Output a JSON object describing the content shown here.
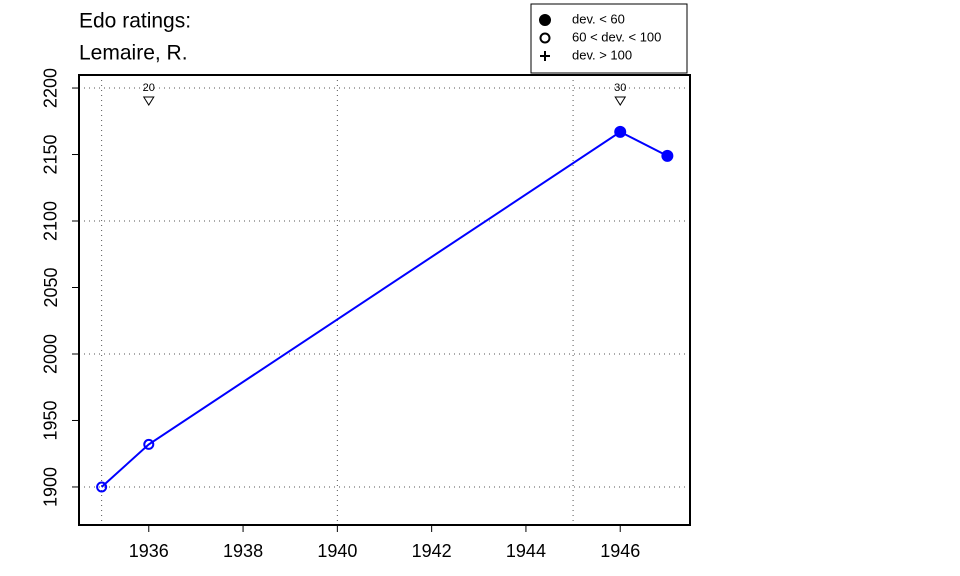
{
  "chart_data": {
    "type": "line",
    "title": "Edo ratings:",
    "subtitle": "Lemaire, R.",
    "x": [
      1935,
      1936,
      1946,
      1947
    ],
    "series": [
      {
        "color": "#0000ff",
        "values": [
          1900,
          1932,
          2167,
          2149
        ],
        "markers": [
          "open",
          "open",
          "filled",
          "filled"
        ]
      }
    ],
    "xlim": [
      1934.52,
      1947.48
    ],
    "ylim": [
      1871.4,
      2209.8
    ],
    "xticks": [
      1936,
      1938,
      1940,
      1942,
      1944,
      1946
    ],
    "yticks": [
      1900,
      1950,
      2000,
      2050,
      2100,
      2150,
      2200
    ],
    "xgrid": [
      1935,
      1940,
      1945
    ],
    "ygrid": [
      1900,
      2000,
      2100,
      2200
    ],
    "annotations": [
      {
        "x": 1936,
        "label": "20"
      },
      {
        "x": 1946,
        "label": "30"
      }
    ],
    "legend": [
      {
        "label": "dev. < 60",
        "marker": "filled"
      },
      {
        "label": "60 < dev. < 100",
        "marker": "open"
      },
      {
        "label": "dev. > 100",
        "marker": "plus"
      }
    ]
  }
}
